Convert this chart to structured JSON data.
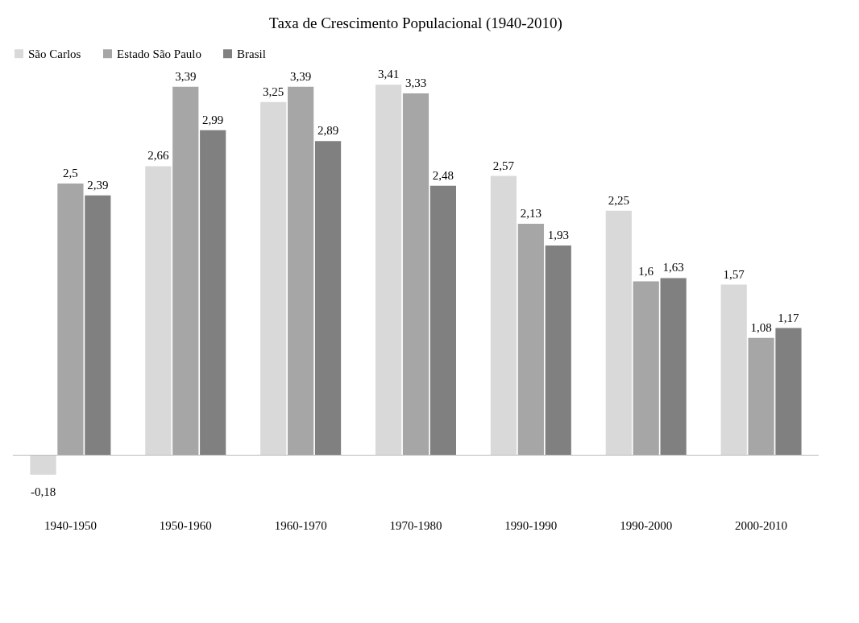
{
  "chart_data": {
    "type": "bar",
    "title": "Taxa de Crescimento Populacional (1940-2010)",
    "categories": [
      "1940-1950",
      "1950-1960",
      "1960-1970",
      "1970-1980",
      "1990-1990",
      "1990-2000",
      "2000-2010"
    ],
    "series": [
      {
        "name": "São Carlos",
        "color": "#d9d9d9",
        "values": [
          -0.18,
          2.66,
          3.25,
          3.41,
          2.57,
          2.25,
          1.57
        ],
        "value_labels": [
          "-0,18",
          "2,66",
          "3,25",
          "3,41",
          "2,57",
          "2,25",
          "1,57"
        ]
      },
      {
        "name": "Estado São Paulo",
        "color": "#a6a6a6",
        "values": [
          2.5,
          3.39,
          3.39,
          3.33,
          2.13,
          1.6,
          1.08
        ],
        "value_labels": [
          "2,5",
          "3,39",
          "3,39",
          "3,33",
          "2,13",
          "1,6",
          "1,08"
        ]
      },
      {
        "name": "Brasil",
        "color": "#808080",
        "values": [
          2.39,
          2.99,
          2.89,
          2.48,
          1.93,
          1.63,
          1.17
        ],
        "value_labels": [
          "2,39",
          "2,99",
          "2,89",
          "2,48",
          "1,93",
          "1,63",
          "1,17"
        ]
      }
    ],
    "legend": "top",
    "grid": false,
    "tick_labels": "x"
  }
}
